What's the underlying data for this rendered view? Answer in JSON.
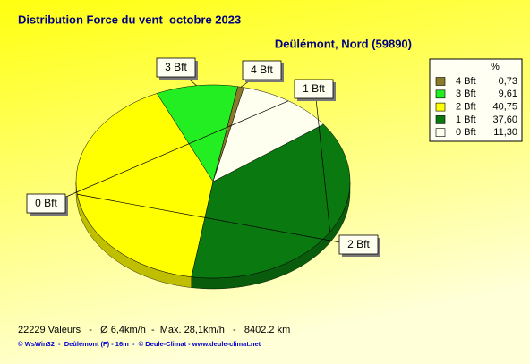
{
  "chart_data": {
    "type": "pie",
    "title": "Distribution Force du vent  octobre 2023",
    "subtitle": "Deülémont, Nord (59890)",
    "categories": [
      "4 Bft",
      "3 Bft",
      "2 Bft",
      "1 Bft",
      "0 Bft"
    ],
    "values": [
      0.73,
      9.61,
      40.75,
      37.6,
      11.3
    ],
    "value_labels": [
      "0,73",
      "9,61",
      "40,75",
      "37,60",
      "11,30"
    ],
    "colors": [
      "#8a7a2a",
      "#22ee22",
      "#ffff00",
      "#0a7a10",
      "#fffff0"
    ],
    "legend_header": "%",
    "legend": "upper right",
    "footer": "22229 Valeurs   -   Ø 6,4km/h  -  Max. 28,1km/h   -   8402.2 km",
    "credit": "© WsWin32  -  Deûlémont (F) - 16m  -  © Deule-Climat - www.deule-climat.net"
  }
}
